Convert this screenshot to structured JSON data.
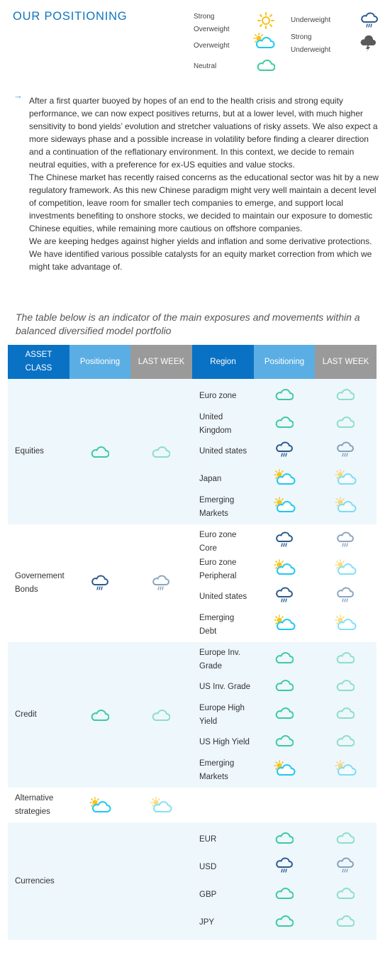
{
  "title": "OUR POSITIONING",
  "legend": {
    "strong_overweight": "Strong Overweight",
    "overweight": "Overweight",
    "neutral": "Neutral",
    "underweight": "Underweight",
    "strong_underweight": "Strong Underweight"
  },
  "commentary": [
    "After a first quarter buoyed by hopes of an end to the health crisis and strong equity performance, we can now expect positives returns, but at a lower level, with much higher sensitivity to bond yields’ evolution and stretcher valuations of risky assets. We also expect a more sideways phase and a possible increase in volatility before finding a clearer direction and a continuation of the reflationary environment. In this context, we decide to remain neutral equities, with a preference for ex-US equities and value stocks.",
    "The Chinese market has recently raised concerns as the educational sector was hit by a new regulatory framework. As this new Chinese paradigm might very well maintain a decent level of competition, leave room for smaller tech companies to emerge, and support local investments benefiting to onshore stocks, we decided to maintain our exposure to domestic Chinese equities, while remaining more cautious on offshore companies.",
    "We are keeping hedges against higher yields and inflation and some derivative protections. We have identified various possible catalysts for an equity market correction from which we might take advantage of."
  ],
  "table_intro": "The table below is an indicator of the main exposures and movements within a balanced diversified model portfolio",
  "headers": [
    "ASSET CLASS",
    "Positioning",
    "LAST WEEK",
    "Region",
    "Positioning",
    "LAST WEEK"
  ],
  "colors": {
    "title_blue": "#0f74bd",
    "header_dark": "#0a72c4",
    "header_light": "#5aaee4",
    "header_grey": "#9a9a9a",
    "band": "#eef7fc",
    "neutral_cloud": "#3ccaa0",
    "underweight_cloud": "#2d5a8c",
    "overweight_cloud": "#1ec8f0",
    "sun": "#f7c21c"
  },
  "asset_classes": [
    {
      "name": "Equities",
      "positioning": "neutral",
      "last_week": "neutral",
      "regions": [
        {
          "name": "Euro zone",
          "positioning": "neutral",
          "last_week": "neutral"
        },
        {
          "name": "United Kingdom",
          "positioning": "neutral",
          "last_week": "neutral"
        },
        {
          "name": "United states",
          "positioning": "underweight",
          "last_week": "underweight"
        },
        {
          "name": "Japan",
          "positioning": "overweight",
          "last_week": "overweight"
        },
        {
          "name": "Emerging Markets",
          "positioning": "overweight",
          "last_week": "overweight"
        }
      ]
    },
    {
      "name": "Governement Bonds",
      "positioning": "underweight",
      "last_week": "underweight",
      "regions": [
        {
          "name": "Euro zone Core",
          "positioning": "underweight",
          "last_week": "underweight"
        },
        {
          "name": "Euro zone Peripheral",
          "positioning": "overweight",
          "last_week": "overweight"
        },
        {
          "name": "United states",
          "positioning": "underweight",
          "last_week": "underweight"
        },
        {
          "name": "Emerging Debt",
          "positioning": "overweight",
          "last_week": "overweight"
        }
      ]
    },
    {
      "name": "Credit",
      "positioning": "neutral",
      "last_week": "neutral",
      "regions": [
        {
          "name": "Europe Inv. Grade",
          "positioning": "neutral",
          "last_week": "neutral"
        },
        {
          "name": "US Inv. Grade",
          "positioning": "neutral",
          "last_week": "neutral"
        },
        {
          "name": "Europe High Yield",
          "positioning": "neutral",
          "last_week": "neutral"
        },
        {
          "name": "US High Yield",
          "positioning": "neutral",
          "last_week": "neutral"
        },
        {
          "name": "Emerging Markets",
          "positioning": "overweight",
          "last_week": "overweight"
        }
      ]
    },
    {
      "name": "Alternative strategies",
      "positioning": "overweight",
      "last_week": "overweight",
      "regions": []
    },
    {
      "name": "Currencies",
      "positioning": "",
      "last_week": "",
      "regions": [
        {
          "name": "EUR",
          "positioning": "neutral",
          "last_week": "neutral"
        },
        {
          "name": "USD",
          "positioning": "underweight",
          "last_week": "underweight"
        },
        {
          "name": "GBP",
          "positioning": "neutral",
          "last_week": "neutral"
        },
        {
          "name": "JPY",
          "positioning": "neutral",
          "last_week": "neutral"
        }
      ]
    }
  ]
}
